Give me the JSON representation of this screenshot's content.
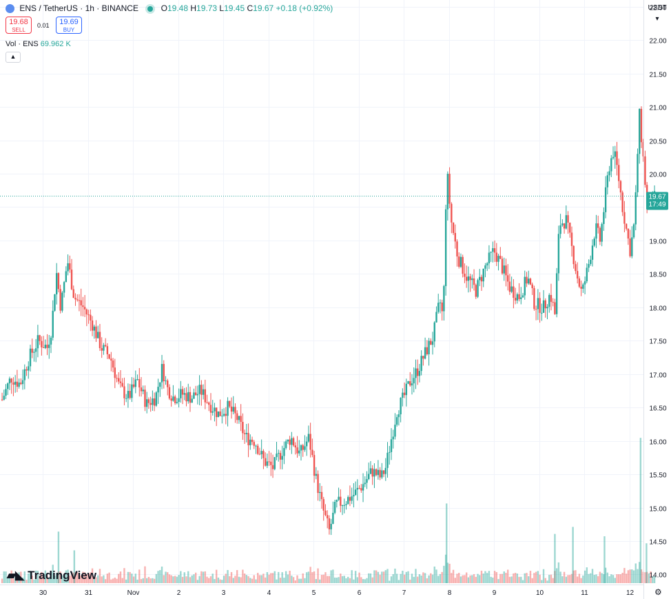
{
  "header": {
    "symbol": "ENS",
    "separator": "/",
    "quote": "TetherUS",
    "interval": "1h",
    "exchange": "BINANCE",
    "ohlc": {
      "o_label": "O",
      "o": "19.48",
      "h_label": "H",
      "h": "19.73",
      "l_label": "L",
      "l": "19.45",
      "c_label": "C",
      "c": "19.67",
      "change": "+0.18",
      "change_pct": "(+0.92%)"
    }
  },
  "trade": {
    "sell_price": "19.68",
    "sell_label": "SELL",
    "spread": "0.01",
    "buy_price": "19.69",
    "buy_label": "BUY"
  },
  "volume_legend": {
    "label": "Vol · ENS",
    "value": "69.962 K"
  },
  "currency_menu": "USDT",
  "price_tag": {
    "price": "19.67",
    "countdown": "17:49"
  },
  "branding": "TradingView",
  "colors": {
    "up": "#26a69a",
    "down": "#ef5350",
    "grid": "#f0f3fa",
    "last_price_line": "#26a69a"
  },
  "chart_data": {
    "type": "candlestick",
    "ylim": [
      13.85,
      22.6
    ],
    "y_ticks": [
      14.0,
      14.5,
      15.0,
      15.5,
      16.0,
      16.5,
      17.0,
      17.5,
      18.0,
      18.5,
      19.0,
      19.5,
      20.0,
      20.5,
      21.0,
      21.5,
      22.0,
      22.5
    ],
    "x_ticks": [
      {
        "label": "30",
        "day": 0
      },
      {
        "label": "31",
        "day": 1
      },
      {
        "label": "Nov",
        "day": 2
      },
      {
        "label": "2",
        "day": 3
      },
      {
        "label": "3",
        "day": 4
      },
      {
        "label": "4",
        "day": 5
      },
      {
        "label": "5",
        "day": 6
      },
      {
        "label": "6",
        "day": 7
      },
      {
        "label": "7",
        "day": 8
      },
      {
        "label": "8",
        "day": 9
      },
      {
        "label": "9",
        "day": 10
      },
      {
        "label": "10",
        "day": 11
      },
      {
        "label": "11",
        "day": 12
      },
      {
        "label": "12",
        "day": 13
      }
    ],
    "last_price": 19.67,
    "price_path": [
      [
        -0.9,
        16.62
      ],
      [
        -0.7,
        16.95
      ],
      [
        -0.5,
        16.85
      ],
      [
        -0.3,
        17.25
      ],
      [
        -0.1,
        17.5
      ],
      [
        0.1,
        17.4
      ],
      [
        0.2,
        17.7
      ],
      [
        0.3,
        18.55
      ],
      [
        0.4,
        18.0
      ],
      [
        0.55,
        18.7
      ],
      [
        0.7,
        18.15
      ],
      [
        0.9,
        18.0
      ],
      [
        1.1,
        17.75
      ],
      [
        1.3,
        17.4
      ],
      [
        1.5,
        17.25
      ],
      [
        1.7,
        16.8
      ],
      [
        1.9,
        16.65
      ],
      [
        2.1,
        16.9
      ],
      [
        2.3,
        16.55
      ],
      [
        2.5,
        16.65
      ],
      [
        2.65,
        17.1
      ],
      [
        2.75,
        16.8
      ],
      [
        2.9,
        16.65
      ],
      [
        3.1,
        16.7
      ],
      [
        3.3,
        16.65
      ],
      [
        3.5,
        16.75
      ],
      [
        3.7,
        16.55
      ],
      [
        3.9,
        16.4
      ],
      [
        4.1,
        16.5
      ],
      [
        4.3,
        16.35
      ],
      [
        4.5,
        16.05
      ],
      [
        4.7,
        16.0
      ],
      [
        4.9,
        15.7
      ],
      [
        5.1,
        15.6
      ],
      [
        5.3,
        15.85
      ],
      [
        5.5,
        16.05
      ],
      [
        5.7,
        15.8
      ],
      [
        5.9,
        16.05
      ],
      [
        6.05,
        15.45
      ],
      [
        6.2,
        15.0
      ],
      [
        6.35,
        14.65
      ],
      [
        6.5,
        15.05
      ],
      [
        6.7,
        15.1
      ],
      [
        6.9,
        15.2
      ],
      [
        7.1,
        15.35
      ],
      [
        7.3,
        15.55
      ],
      [
        7.5,
        15.45
      ],
      [
        7.6,
        15.6
      ],
      [
        7.7,
        15.95
      ],
      [
        7.85,
        16.45
      ],
      [
        8.0,
        16.65
      ],
      [
        8.15,
        16.9
      ],
      [
        8.3,
        17.05
      ],
      [
        8.5,
        17.35
      ],
      [
        8.65,
        17.55
      ],
      [
        8.8,
        18.1
      ],
      [
        8.88,
        17.8
      ],
      [
        8.92,
        19.4
      ],
      [
        8.97,
        19.95
      ],
      [
        9.05,
        19.3
      ],
      [
        9.2,
        18.75
      ],
      [
        9.4,
        18.45
      ],
      [
        9.6,
        18.25
      ],
      [
        9.8,
        18.6
      ],
      [
        10.0,
        18.85
      ],
      [
        10.15,
        18.65
      ],
      [
        10.35,
        18.3
      ],
      [
        10.55,
        18.15
      ],
      [
        10.75,
        18.45
      ],
      [
        10.9,
        18.05
      ],
      [
        11.1,
        18.0
      ],
      [
        11.25,
        18.2
      ],
      [
        11.35,
        17.9
      ],
      [
        11.45,
        19.25
      ],
      [
        11.6,
        19.3
      ],
      [
        11.75,
        18.8
      ],
      [
        11.85,
        18.45
      ],
      [
        11.95,
        18.2
      ],
      [
        12.1,
        18.65
      ],
      [
        12.25,
        19.2
      ],
      [
        12.35,
        19.0
      ],
      [
        12.45,
        19.55
      ],
      [
        12.55,
        20.1
      ],
      [
        12.65,
        20.35
      ],
      [
        12.75,
        20.0
      ],
      [
        12.85,
        19.5
      ],
      [
        12.95,
        19.1
      ],
      [
        13.02,
        18.85
      ],
      [
        13.12,
        19.3
      ],
      [
        13.22,
        20.9
      ],
      [
        13.3,
        20.3
      ],
      [
        13.4,
        19.45
      ],
      [
        13.5,
        19.55
      ],
      [
        13.58,
        19.67
      ]
    ],
    "volume": {
      "baseline_spikes": [
        {
          "day": 0.35,
          "value": 0.22
        },
        {
          "day": 0.7,
          "value": 0.14
        },
        {
          "day": 8.95,
          "value": 0.34
        },
        {
          "day": 11.35,
          "value": 0.21
        },
        {
          "day": 11.75,
          "value": 0.24
        },
        {
          "day": 12.45,
          "value": 0.2
        },
        {
          "day": 13.25,
          "value": 0.62
        },
        {
          "day": 13.38,
          "value": 0.17
        }
      ],
      "max_value": 1.0
    }
  }
}
